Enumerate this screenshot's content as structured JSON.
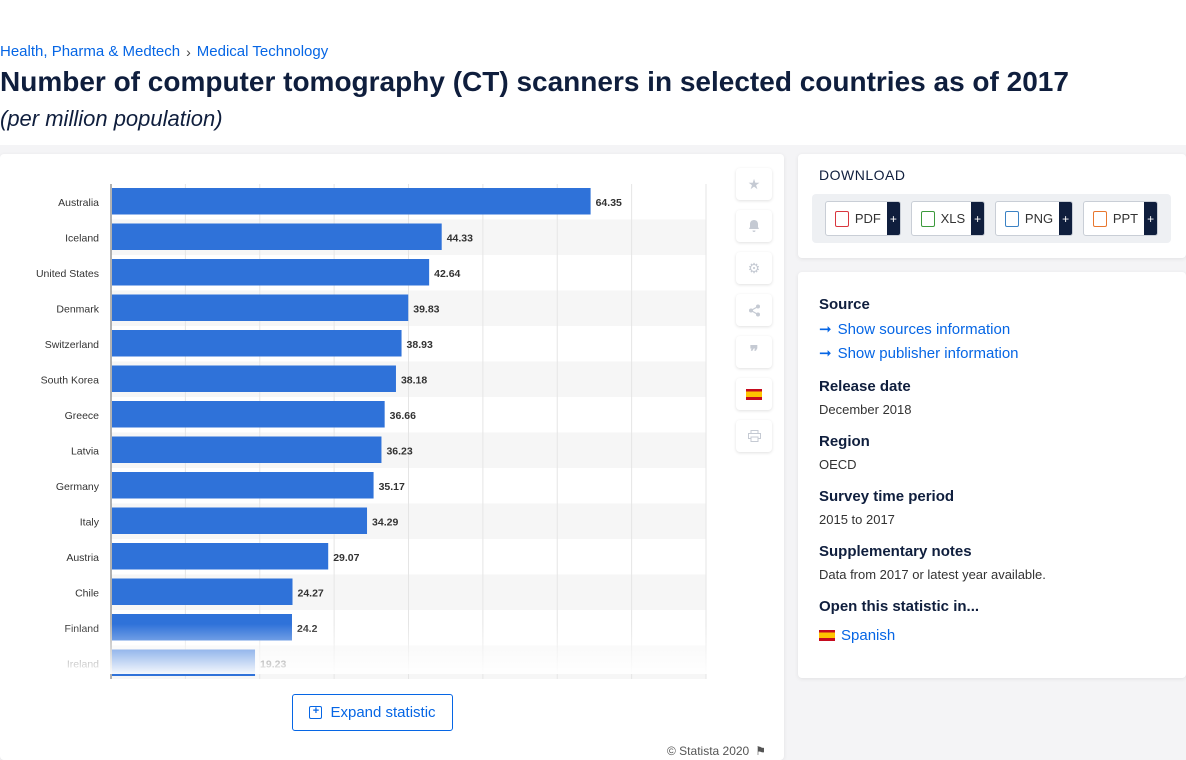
{
  "breadcrumb": {
    "item1": "Health, Pharma & Medtech",
    "item2": "Medical Technology"
  },
  "page": {
    "title": "Number of computer tomography (CT) scanners in selected countries as of 2017",
    "subtitle": "(per million population)"
  },
  "chart": {
    "expand_label": "Expand statistic",
    "copyright": "© Statista 2020"
  },
  "chart_data": {
    "type": "bar",
    "orientation": "horizontal",
    "categories": [
      "Australia",
      "Iceland",
      "United States",
      "Denmark",
      "Switzerland",
      "South Korea",
      "Greece",
      "Latvia",
      "Germany",
      "Italy",
      "Austria",
      "Chile",
      "Finland",
      "Ireland"
    ],
    "values": [
      64.35,
      44.33,
      42.64,
      39.83,
      38.93,
      38.18,
      36.66,
      36.23,
      35.17,
      34.29,
      29.07,
      24.27,
      24.2,
      19.23
    ],
    "xlim": [
      0,
      80
    ],
    "grid": true,
    "bar_color": "#2f72d9"
  },
  "download": {
    "title": "DOWNLOAD",
    "buttons": [
      {
        "label": "PDF",
        "color": "#d9363e"
      },
      {
        "label": "XLS",
        "color": "#3c9a3c"
      },
      {
        "label": "PNG",
        "color": "#3b82c4"
      },
      {
        "label": "PPT",
        "color": "#e8772e"
      }
    ]
  },
  "info": {
    "source_heading": "Source",
    "show_sources": "Show sources information",
    "show_publisher": "Show publisher information",
    "release_heading": "Release date",
    "release_value": "December 2018",
    "region_heading": "Region",
    "region_value": "OECD",
    "survey_heading": "Survey time period",
    "survey_value": "2015 to 2017",
    "notes_heading": "Supplementary notes",
    "notes_value": "Data from 2017 or latest year available.",
    "open_heading": "Open this statistic in...",
    "open_language": "Spanish"
  },
  "icons": [
    "star-icon",
    "bell-icon",
    "gear-icon",
    "share-icon",
    "quote-icon",
    "flag-spain-icon",
    "print-icon"
  ]
}
